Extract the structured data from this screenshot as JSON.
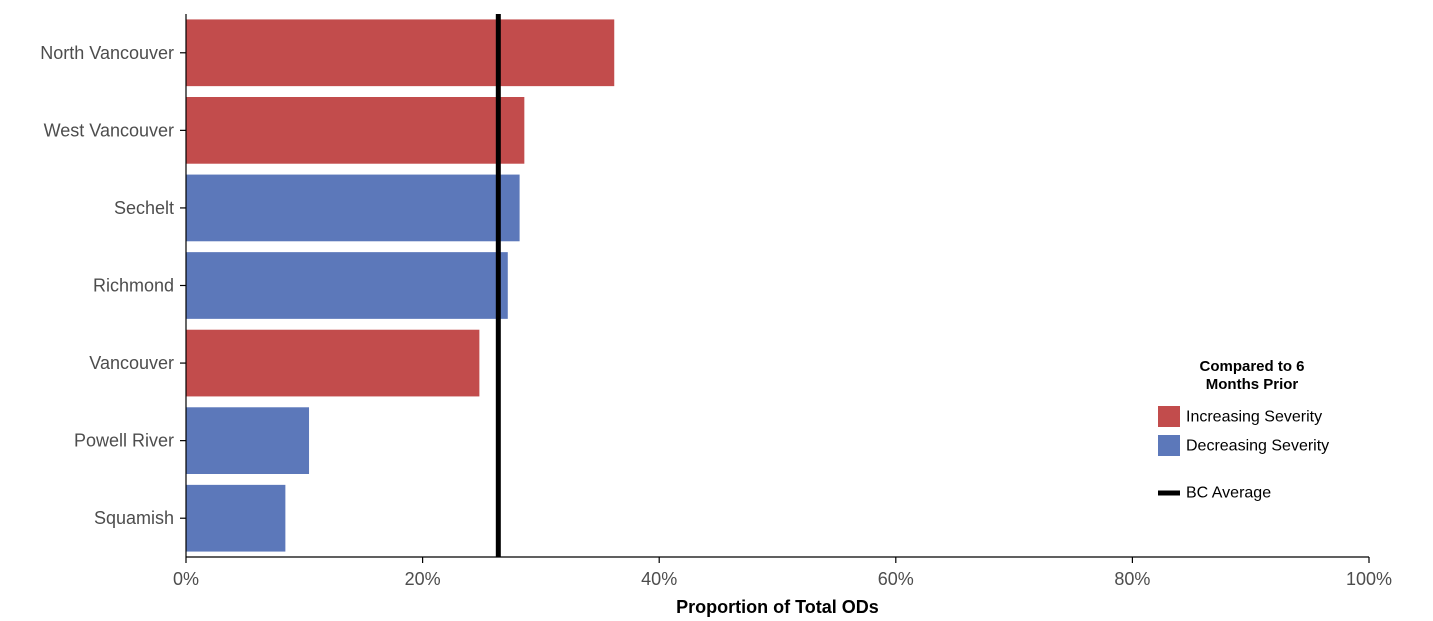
{
  "chart_data": {
    "type": "bar",
    "orientation": "horizontal",
    "categories": [
      "North Vancouver",
      "West Vancouver",
      "Sechelt",
      "Richmond",
      "Vancouver",
      "Powell River",
      "Squamish"
    ],
    "values": [
      36.2,
      28.6,
      28.2,
      27.2,
      24.8,
      10.4,
      8.4
    ],
    "severity": [
      "increasing",
      "increasing",
      "decreasing",
      "decreasing",
      "increasing",
      "decreasing",
      "decreasing"
    ],
    "reference_line": {
      "label": "BC Average",
      "value": 26.4,
      "color": "#000000"
    },
    "xlabel": "Proportion of Total ODs",
    "xlim": [
      0,
      100
    ],
    "xticks": [
      0,
      20,
      40,
      60,
      80,
      100
    ],
    "xtick_labels": [
      "0%",
      "20%",
      "40%",
      "60%",
      "80%",
      "100%"
    ],
    "grid": false,
    "legend": {
      "placement": "right",
      "title_lines": [
        "Compared to 6",
        "Months Prior"
      ],
      "entries": [
        {
          "key": "increasing",
          "label": "Increasing Severity",
          "color": "#c24c4c"
        },
        {
          "key": "decreasing",
          "label": "Decreasing Severity",
          "color": "#5c78ba"
        }
      ]
    }
  }
}
